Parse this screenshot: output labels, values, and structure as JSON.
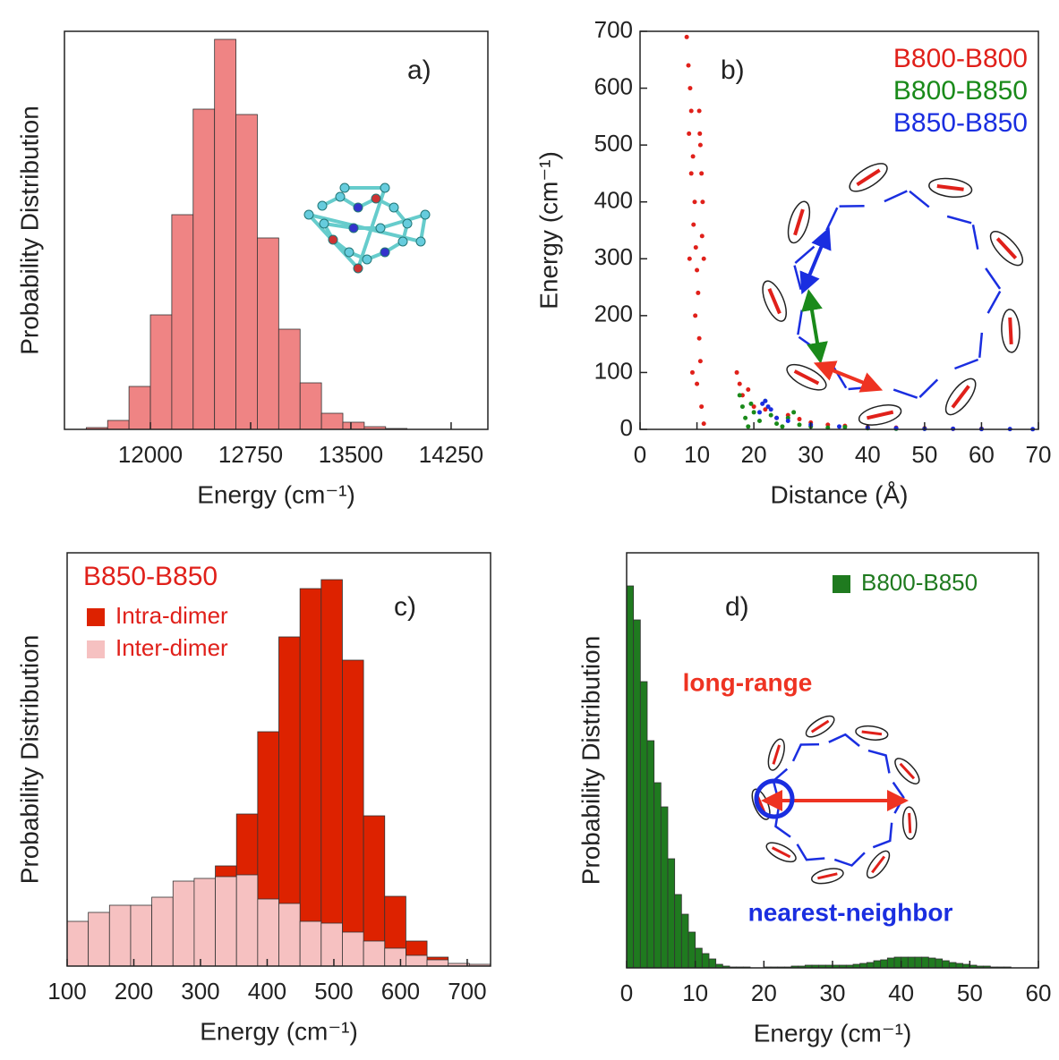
{
  "chart_data": [
    {
      "type": "histogram",
      "panel_label": "a)",
      "xlabel": "Energy (cm⁻¹)",
      "ylabel": "Probability Distribution",
      "xlim": [
        11357,
        14525
      ],
      "xticks": [
        12000,
        12750,
        13500,
        14250
      ],
      "ylim": [
        0,
        445
      ],
      "bins": [
        11520,
        11680,
        11840,
        12000,
        12160,
        12320,
        12480,
        12640,
        12800,
        12960,
        13120,
        13280,
        13440,
        13600,
        13760,
        13920
      ],
      "values": [
        2,
        10,
        48,
        128,
        240,
        358,
        436,
        352,
        214,
        112,
        52,
        18,
        8,
        3,
        1
      ],
      "color": "#ef8484"
    },
    {
      "type": "scatter",
      "panel_label": "b)",
      "xlabel": "Distance (Å)",
      "ylabel": "Energy (cm⁻¹)",
      "xlim": [
        0,
        70
      ],
      "xticks": [
        0,
        10,
        20,
        30,
        40,
        50,
        60,
        70
      ],
      "ylim": [
        0,
        700
      ],
      "yticks": [
        0,
        100,
        200,
        300,
        400,
        500,
        600,
        700
      ],
      "series": [
        {
          "name": "B800-B800",
          "color": "#e0201a",
          "x": [
            8.2,
            8.5,
            8.8,
            9.0,
            8.6,
            9.3,
            9.0,
            9.6,
            9.4,
            9.8,
            10.0,
            10.2,
            9.7,
            10.4,
            10.6,
            10.0,
            10.8,
            11.2,
            8.7,
            9.2,
            10.4,
            10.6,
            10.8,
            11.0,
            10.9,
            11.2,
            10.5,
            17,
            17.5,
            18,
            19,
            20,
            22,
            24,
            26,
            28,
            30,
            33,
            36,
            40,
            45,
            50,
            55,
            60
          ],
          "y": [
            690,
            640,
            600,
            560,
            520,
            480,
            450,
            400,
            360,
            320,
            280,
            240,
            200,
            160,
            120,
            80,
            40,
            10,
            300,
            100,
            560,
            500,
            450,
            400,
            340,
            300,
            520,
            100,
            80,
            60,
            70,
            40,
            35,
            20,
            25,
            18,
            12,
            8,
            6,
            4,
            3,
            2,
            1,
            1
          ]
        },
        {
          "name": "B800-B850",
          "color": "#1a8a1a",
          "x": [
            17.5,
            18,
            18.5,
            19,
            20,
            21,
            22,
            23,
            24,
            25,
            26,
            28,
            30,
            33,
            36,
            40,
            45,
            50,
            27,
            19.5
          ],
          "y": [
            60,
            40,
            20,
            5,
            30,
            15,
            50,
            25,
            10,
            5,
            20,
            8,
            5,
            3,
            4,
            2,
            1,
            1,
            30,
            45
          ]
        },
        {
          "name": "B850-B850",
          "color": "#1a2ee0",
          "x": [
            21.5,
            22,
            22.5,
            23,
            21,
            24,
            26,
            30,
            35,
            40,
            45,
            50,
            55,
            60,
            65,
            69
          ],
          "y": [
            45,
            50,
            40,
            35,
            30,
            20,
            15,
            8,
            5,
            3,
            2,
            1,
            1,
            0.5,
            0.5,
            0.3
          ]
        }
      ]
    },
    {
      "type": "histogram",
      "panel_label": "c)",
      "xlabel": "Energy (cm⁻¹)",
      "ylabel": "Probability Distribution",
      "xlim": [
        100,
        735
      ],
      "xticks": [
        100,
        200,
        300,
        400,
        500,
        600,
        700
      ],
      "ylim": [
        0,
        462
      ],
      "legend_title": "B850-B850",
      "legend_title_color": "#e0201a",
      "bins": [
        100,
        131.75,
        163.5,
        195.25,
        227,
        258.75,
        290.5,
        322.25,
        354,
        385.75,
        417.5,
        449.25,
        481,
        512.75,
        544.5,
        576.25,
        608,
        639.75,
        671.5,
        703.25,
        735
      ],
      "series": [
        {
          "name": "Intra-dimer",
          "color": "#dd2200",
          "values": [
            0,
            0,
            0,
            0,
            0,
            0,
            0,
            112,
            170,
            262,
            368,
            422,
            432,
            342,
            168,
            78,
            28,
            10,
            0,
            0
          ]
        },
        {
          "name": "Inter-dimer",
          "color": "#f6c1c1",
          "values": [
            50,
            60,
            68,
            68,
            77,
            95,
            98,
            100,
            102,
            75,
            70,
            50,
            48,
            38,
            28,
            20,
            12,
            7,
            3,
            2
          ]
        }
      ]
    },
    {
      "type": "histogram",
      "panel_label": "d)",
      "xlabel": "Energy (cm⁻¹)",
      "ylabel": "Probability Distribution",
      "xlim": [
        0,
        60
      ],
      "xticks": [
        0,
        10,
        20,
        30,
        40,
        50,
        60
      ],
      "ylim": [
        0,
        464
      ],
      "bins": [
        0,
        1,
        2,
        3,
        4,
        5,
        6,
        7,
        8,
        9,
        10,
        11,
        12,
        13,
        14,
        15,
        16,
        17,
        18,
        19,
        20,
        21,
        22,
        23,
        24,
        25,
        26,
        27,
        28,
        29,
        30,
        31,
        32,
        33,
        34,
        35,
        36,
        37,
        38,
        39,
        40,
        41,
        42,
        43,
        44,
        45,
        46,
        47,
        48,
        49,
        50,
        51,
        52,
        53,
        54,
        55,
        56,
        57,
        58,
        59,
        60
      ],
      "series": [
        {
          "name": "B800-B850",
          "color": "#1f7a1f",
          "values": [
            427,
            389,
            320,
            254,
            207,
            180,
            122,
            82,
            60,
            40,
            22,
            16,
            10,
            4,
            2,
            1,
            1,
            1,
            0,
            0,
            1,
            1,
            1,
            1,
            2,
            2,
            3,
            3,
            3,
            3,
            3,
            3,
            3,
            4,
            5,
            6,
            8,
            9,
            11,
            12,
            12,
            12,
            12,
            12,
            11,
            10,
            8,
            6,
            5,
            4,
            3,
            2,
            2,
            1,
            1,
            1,
            0,
            0,
            0,
            0
          ]
        }
      ],
      "annotations": [
        {
          "text": "long-range",
          "color": "#ee3322"
        },
        {
          "text": "nearest-neighbor",
          "color": "#1a2ee0"
        }
      ]
    }
  ]
}
